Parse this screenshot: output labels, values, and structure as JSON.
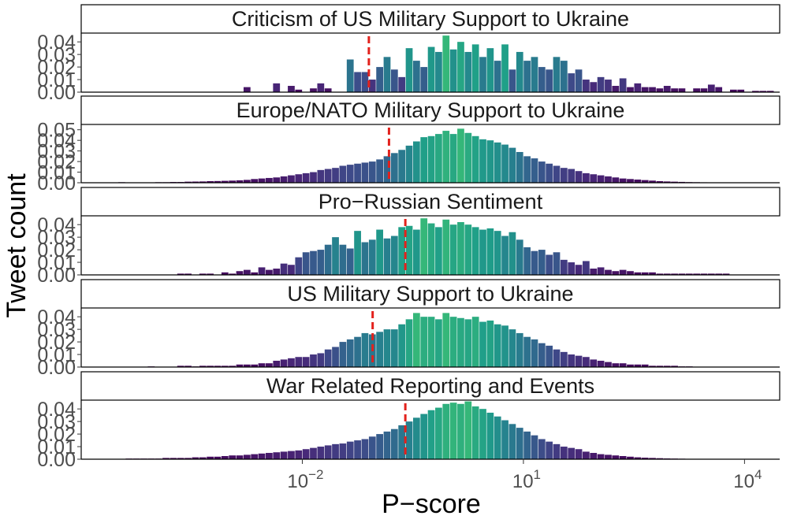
{
  "chart_data": {
    "type": "bar",
    "subtype": "faceted histogram",
    "xlabel": "P−score",
    "ylabel": "Tweet count",
    "x_scale": "log10",
    "x_ticks": [
      {
        "value": 0.01,
        "label": "10",
        "exp": "−2"
      },
      {
        "value": 10,
        "label": "10",
        "exp": "1"
      },
      {
        "value": 10000,
        "label": "10",
        "exp": "4"
      }
    ],
    "x_range": [
      1e-05,
      30000
    ],
    "bin_width_log10": 0.1,
    "mean_line_color": "#e3211c",
    "panels": [
      {
        "title": "Criticism of US Military Support to Ukraine",
        "yticks": [
          "0.00",
          "0.01",
          "0.02",
          "0.03",
          "0.04"
        ],
        "ymax": 0.047,
        "mean_marker": 0.08,
        "bin_start_log10": -2.8,
        "values": [
          0.004,
          0,
          0,
          0,
          0.007,
          0,
          0.005,
          0.002,
          0,
          0.003,
          0.007,
          0.003,
          0,
          0,
          0.026,
          0.016,
          0.016,
          0.01,
          0.02,
          0.028,
          0.018,
          0.012,
          0.035,
          0.025,
          0.02,
          0.036,
          0.032,
          0.045,
          0.034,
          0.04,
          0.032,
          0.038,
          0.028,
          0.035,
          0.025,
          0.038,
          0.018,
          0.032,
          0.025,
          0.028,
          0.02,
          0.018,
          0.028,
          0.025,
          0.015,
          0.018,
          0.01,
          0.008,
          0.012,
          0.01,
          0.005,
          0.011,
          0.004,
          0.007,
          0.004,
          0.004,
          0.003,
          0.005,
          0.003,
          0.003,
          0,
          0.003,
          0.003,
          0.006,
          0.004,
          0,
          0.002,
          0.002,
          0,
          0.001,
          0.001,
          0.001
        ]
      },
      {
        "title": "Europe/NATO Military Support to Ukraine",
        "yticks": [
          "0.00",
          "0.01",
          "0.02",
          "0.03",
          "0.04",
          "0.05"
        ],
        "ymax": 0.055,
        "mean_marker": 0.15,
        "bin_start_log10": -4.5,
        "values": [
          0.0005,
          0,
          0,
          0,
          0,
          0.0005,
          0.0005,
          0.0007,
          0.0007,
          0.001,
          0.0011,
          0.0012,
          0.0015,
          0.0016,
          0.0018,
          0.002,
          0.0023,
          0.0027,
          0.0035,
          0.004,
          0.0045,
          0.005,
          0.006,
          0.007,
          0.008,
          0.009,
          0.01,
          0.012,
          0.013,
          0.014,
          0.016,
          0.017,
          0.018,
          0.019,
          0.02,
          0.022,
          0.025,
          0.028,
          0.031,
          0.035,
          0.039,
          0.043,
          0.044,
          0.046,
          0.049,
          0.046,
          0.051,
          0.047,
          0.044,
          0.041,
          0.04,
          0.038,
          0.036,
          0.033,
          0.029,
          0.025,
          0.023,
          0.02,
          0.018,
          0.016,
          0.014,
          0.013,
          0.011,
          0.009,
          0.008,
          0.007,
          0.006,
          0.005,
          0.004,
          0.0035,
          0.003,
          0.0025,
          0.002,
          0.0015,
          0.0012,
          0.001,
          0.0008,
          0.0006,
          0.0005,
          0.0004,
          0.0003
        ]
      },
      {
        "title": "Pro−Russian Sentiment",
        "yticks": [
          "0.00",
          "0.01",
          "0.02",
          "0.03",
          "0.04"
        ],
        "ymax": 0.047,
        "mean_marker": 0.25,
        "bin_start_log10": -3.7,
        "values": [
          0.001,
          0.001,
          0,
          0.001,
          0.001,
          0,
          0.002,
          0.001,
          0.003,
          0.004,
          0.002,
          0.006,
          0.004,
          0.005,
          0.009,
          0.008,
          0.014,
          0.018,
          0.019,
          0.02,
          0.024,
          0.03,
          0.024,
          0.021,
          0.035,
          0.026,
          0.028,
          0.036,
          0.029,
          0.031,
          0.038,
          0.039,
          0.036,
          0.045,
          0.041,
          0.038,
          0.044,
          0.04,
          0.042,
          0.04,
          0.038,
          0.036,
          0.037,
          0.035,
          0.031,
          0.034,
          0.028,
          0.022,
          0.019,
          0.02,
          0.016,
          0.018,
          0.012,
          0.01,
          0.008,
          0.011,
          0.005,
          0.006,
          0.004,
          0.003,
          0.004,
          0.003,
          0.002,
          0.002,
          0.002,
          0.001,
          0.001,
          0.001,
          0.001,
          0.001,
          0.001,
          0.001,
          0.001,
          0.001,
          0.001
        ]
      },
      {
        "title": "US Military Support to Ukraine",
        "yticks": [
          "0.00",
          "0.01",
          "0.02",
          "0.03",
          "0.04"
        ],
        "ymax": 0.047,
        "mean_marker": 0.09,
        "bin_start_log10": -4.1,
        "values": [
          0.0005,
          0,
          0,
          0,
          0.001,
          0.001,
          0.0005,
          0.001,
          0.001,
          0.001,
          0.001,
          0.001,
          0.002,
          0.002,
          0.002,
          0.003,
          0.003,
          0.005,
          0.006,
          0.007,
          0.008,
          0.008,
          0.01,
          0.011,
          0.014,
          0.016,
          0.02,
          0.022,
          0.024,
          0.027,
          0.026,
          0.028,
          0.03,
          0.03,
          0.034,
          0.038,
          0.043,
          0.04,
          0.04,
          0.038,
          0.043,
          0.04,
          0.039,
          0.038,
          0.04,
          0.036,
          0.037,
          0.034,
          0.033,
          0.03,
          0.027,
          0.024,
          0.022,
          0.019,
          0.017,
          0.014,
          0.012,
          0.01,
          0.009,
          0.008,
          0.006,
          0.005,
          0.004,
          0.003,
          0.003,
          0.002,
          0.002,
          0.002,
          0.001,
          0.001,
          0.001,
          0.001,
          0.0005,
          0.0005
        ]
      },
      {
        "title": "War Related Reporting and Events",
        "yticks": [
          "0.00",
          "0.01",
          "0.02",
          "0.03",
          "0.04"
        ],
        "ymax": 0.047,
        "mean_marker": 0.25,
        "bin_start_log10": -4.4,
        "values": [
          0.0005,
          0.0005,
          0.0005,
          0.0005,
          0.0005,
          0.001,
          0.001,
          0.001,
          0.001,
          0.0015,
          0.0015,
          0.002,
          0.002,
          0.0025,
          0.003,
          0.003,
          0.0035,
          0.004,
          0.0045,
          0.005,
          0.0055,
          0.006,
          0.0065,
          0.007,
          0.008,
          0.009,
          0.01,
          0.011,
          0.012,
          0.0125,
          0.014,
          0.015,
          0.016,
          0.018,
          0.02,
          0.022,
          0.024,
          0.027,
          0.03,
          0.033,
          0.036,
          0.039,
          0.041,
          0.044,
          0.045,
          0.044,
          0.046,
          0.042,
          0.04,
          0.037,
          0.034,
          0.031,
          0.028,
          0.025,
          0.022,
          0.019,
          0.016,
          0.014,
          0.012,
          0.01,
          0.009,
          0.008,
          0.006,
          0.005,
          0.004,
          0.0035,
          0.003,
          0.0025,
          0.002,
          0.0015,
          0.0012,
          0.001,
          0.0008,
          0.0006,
          0.0005,
          0.0004,
          0.0003
        ]
      }
    ]
  }
}
